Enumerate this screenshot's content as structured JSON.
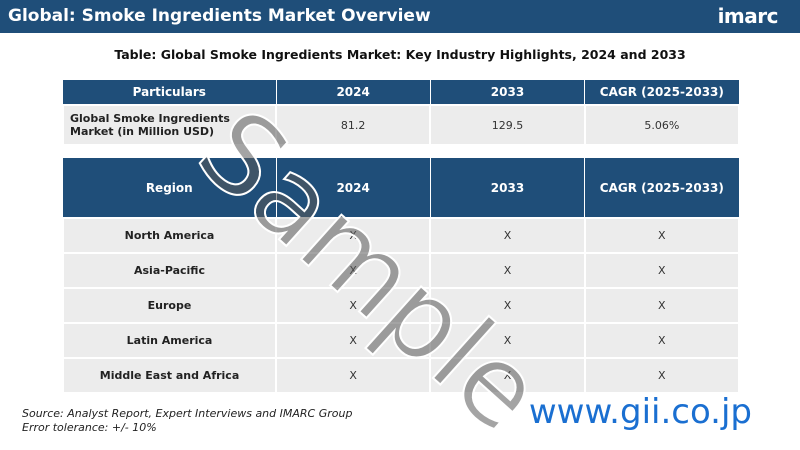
{
  "header": {
    "title": "Global: Smoke Ingredients Market Overview",
    "logo": "imarc"
  },
  "caption": "Table: Global Smoke Ingredients Market: Key Industry Highlights, 2024 and 2033",
  "table1": {
    "columns": [
      "Particulars",
      "2024",
      "2033",
      "CAGR (2025-2033)"
    ],
    "rows": [
      [
        "Global Smoke Ingredients Market (in Million USD)",
        "81.2",
        "129.5",
        "5.06%"
      ]
    ]
  },
  "table2": {
    "columns": [
      "Region",
      "2024",
      "2033",
      "CAGR (2025-2033)"
    ],
    "rows": [
      [
        "North America",
        "X",
        "X",
        "X"
      ],
      [
        "Asia-Pacific",
        "X",
        "X",
        "X"
      ],
      [
        "Europe",
        "X",
        "X",
        "X"
      ],
      [
        "Latin America",
        "X",
        "X",
        "X"
      ],
      [
        "Middle East and Africa",
        "X",
        "X",
        "X"
      ]
    ]
  },
  "watermark": "Sample",
  "footer": {
    "source": "Source: Analyst Report, Expert Interviews and IMARC Group",
    "tolerance": "Error tolerance: +/- 10%",
    "site": "www.gii.co.jp"
  }
}
